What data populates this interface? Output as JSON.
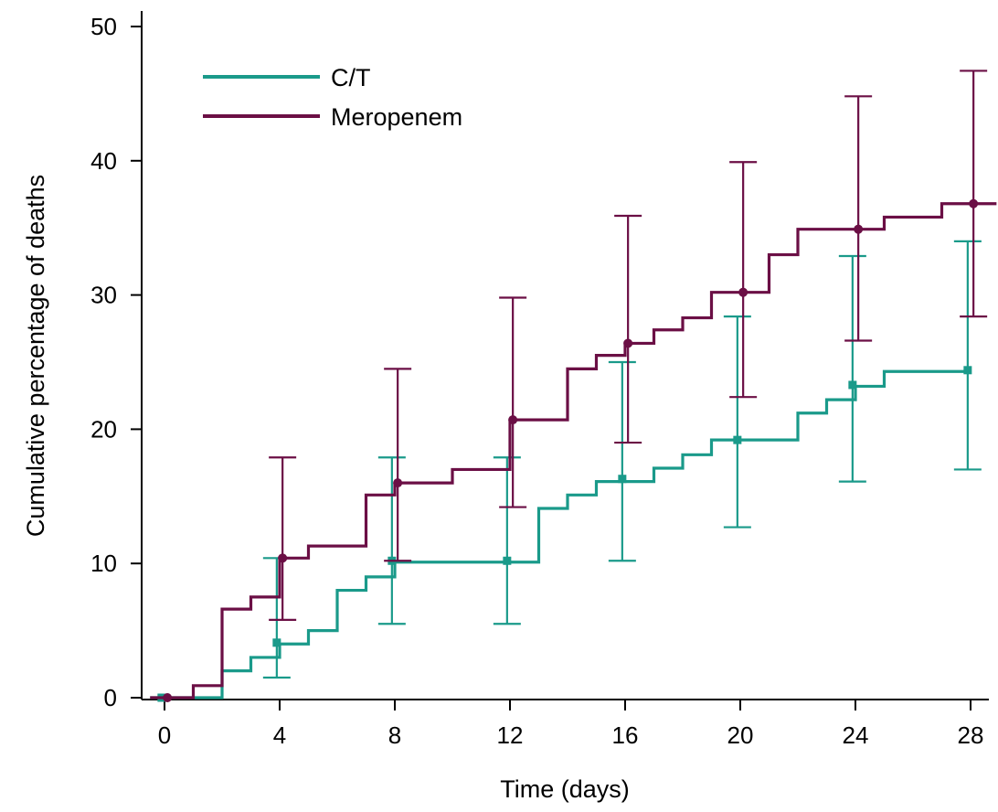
{
  "chart_data": {
    "type": "line",
    "xlabel": "Time (days)",
    "ylabel": "Cumulative percentage of deaths",
    "xlim": [
      -1,
      28.9
    ],
    "ylim": [
      0,
      50
    ],
    "xticks": [
      0,
      4,
      8,
      12,
      16,
      20,
      24,
      28
    ],
    "yticks": [
      0,
      10,
      20,
      30,
      40,
      50
    ],
    "legend_position": "top-left",
    "colors": {
      "ct": "#1a9a8a",
      "meropenem": "#6b0f45"
    },
    "series": [
      {
        "name": "C/T",
        "key": "ct",
        "marker": "square",
        "steps": [
          [
            -0.5,
            0
          ],
          [
            2,
            2
          ],
          [
            3,
            3
          ],
          [
            4,
            4
          ],
          [
            5,
            5
          ],
          [
            6,
            8
          ],
          [
            7,
            9
          ],
          [
            8,
            10.1
          ],
          [
            13,
            14.1
          ],
          [
            14,
            15.1
          ],
          [
            15,
            16.1
          ],
          [
            17,
            17.1
          ],
          [
            18,
            18.1
          ],
          [
            19,
            19.2
          ],
          [
            22,
            21.2
          ],
          [
            23,
            22.2
          ],
          [
            24,
            23.2
          ],
          [
            25,
            24.3
          ],
          [
            28,
            24.3
          ]
        ],
        "points": [
          {
            "x": -0.1,
            "y": 0
          },
          {
            "x": 3.9,
            "y": 4.1,
            "ci": [
              1.5,
              10.4
            ]
          },
          {
            "x": 7.9,
            "y": 10.2,
            "ci": [
              5.5,
              17.9
            ]
          },
          {
            "x": 11.9,
            "y": 10.2,
            "ci": [
              5.5,
              17.9
            ]
          },
          {
            "x": 15.9,
            "y": 16.3,
            "ci": [
              10.2,
              25.0
            ]
          },
          {
            "x": 19.9,
            "y": 19.2,
            "ci": [
              12.7,
              28.4
            ]
          },
          {
            "x": 23.9,
            "y": 23.3,
            "ci": [
              16.1,
              32.9
            ]
          },
          {
            "x": 27.9,
            "y": 24.4,
            "ci": [
              17.0,
              34.0
            ]
          }
        ]
      },
      {
        "name": "Meropenem",
        "key": "meropenem",
        "marker": "circle",
        "steps": [
          [
            -0.5,
            0
          ],
          [
            1,
            0.9
          ],
          [
            2,
            6.6
          ],
          [
            3,
            7.5
          ],
          [
            4,
            10.4
          ],
          [
            5,
            11.3
          ],
          [
            7,
            15.1
          ],
          [
            8,
            16.0
          ],
          [
            10,
            17.0
          ],
          [
            12,
            20.7
          ],
          [
            14,
            24.5
          ],
          [
            15,
            25.5
          ],
          [
            16,
            26.4
          ],
          [
            17,
            27.4
          ],
          [
            18,
            28.3
          ],
          [
            19,
            30.2
          ],
          [
            21,
            33.0
          ],
          [
            22,
            34.9
          ],
          [
            25,
            35.8
          ],
          [
            27,
            36.8
          ],
          [
            28.9,
            36.8
          ]
        ],
        "points": [
          {
            "x": 0.1,
            "y": 0
          },
          {
            "x": 4.1,
            "y": 10.4,
            "ci": [
              5.8,
              17.9
            ]
          },
          {
            "x": 8.1,
            "y": 16.0,
            "ci": [
              10.2,
              24.5
            ]
          },
          {
            "x": 12.1,
            "y": 20.7,
            "ci": [
              14.2,
              29.8
            ]
          },
          {
            "x": 16.1,
            "y": 26.4,
            "ci": [
              19.0,
              35.9
            ]
          },
          {
            "x": 20.1,
            "y": 30.2,
            "ci": [
              22.4,
              39.9
            ]
          },
          {
            "x": 24.1,
            "y": 34.9,
            "ci": [
              26.6,
              44.8
            ]
          },
          {
            "x": 28.1,
            "y": 36.8,
            "ci": [
              28.4,
              46.7
            ]
          }
        ]
      }
    ]
  }
}
